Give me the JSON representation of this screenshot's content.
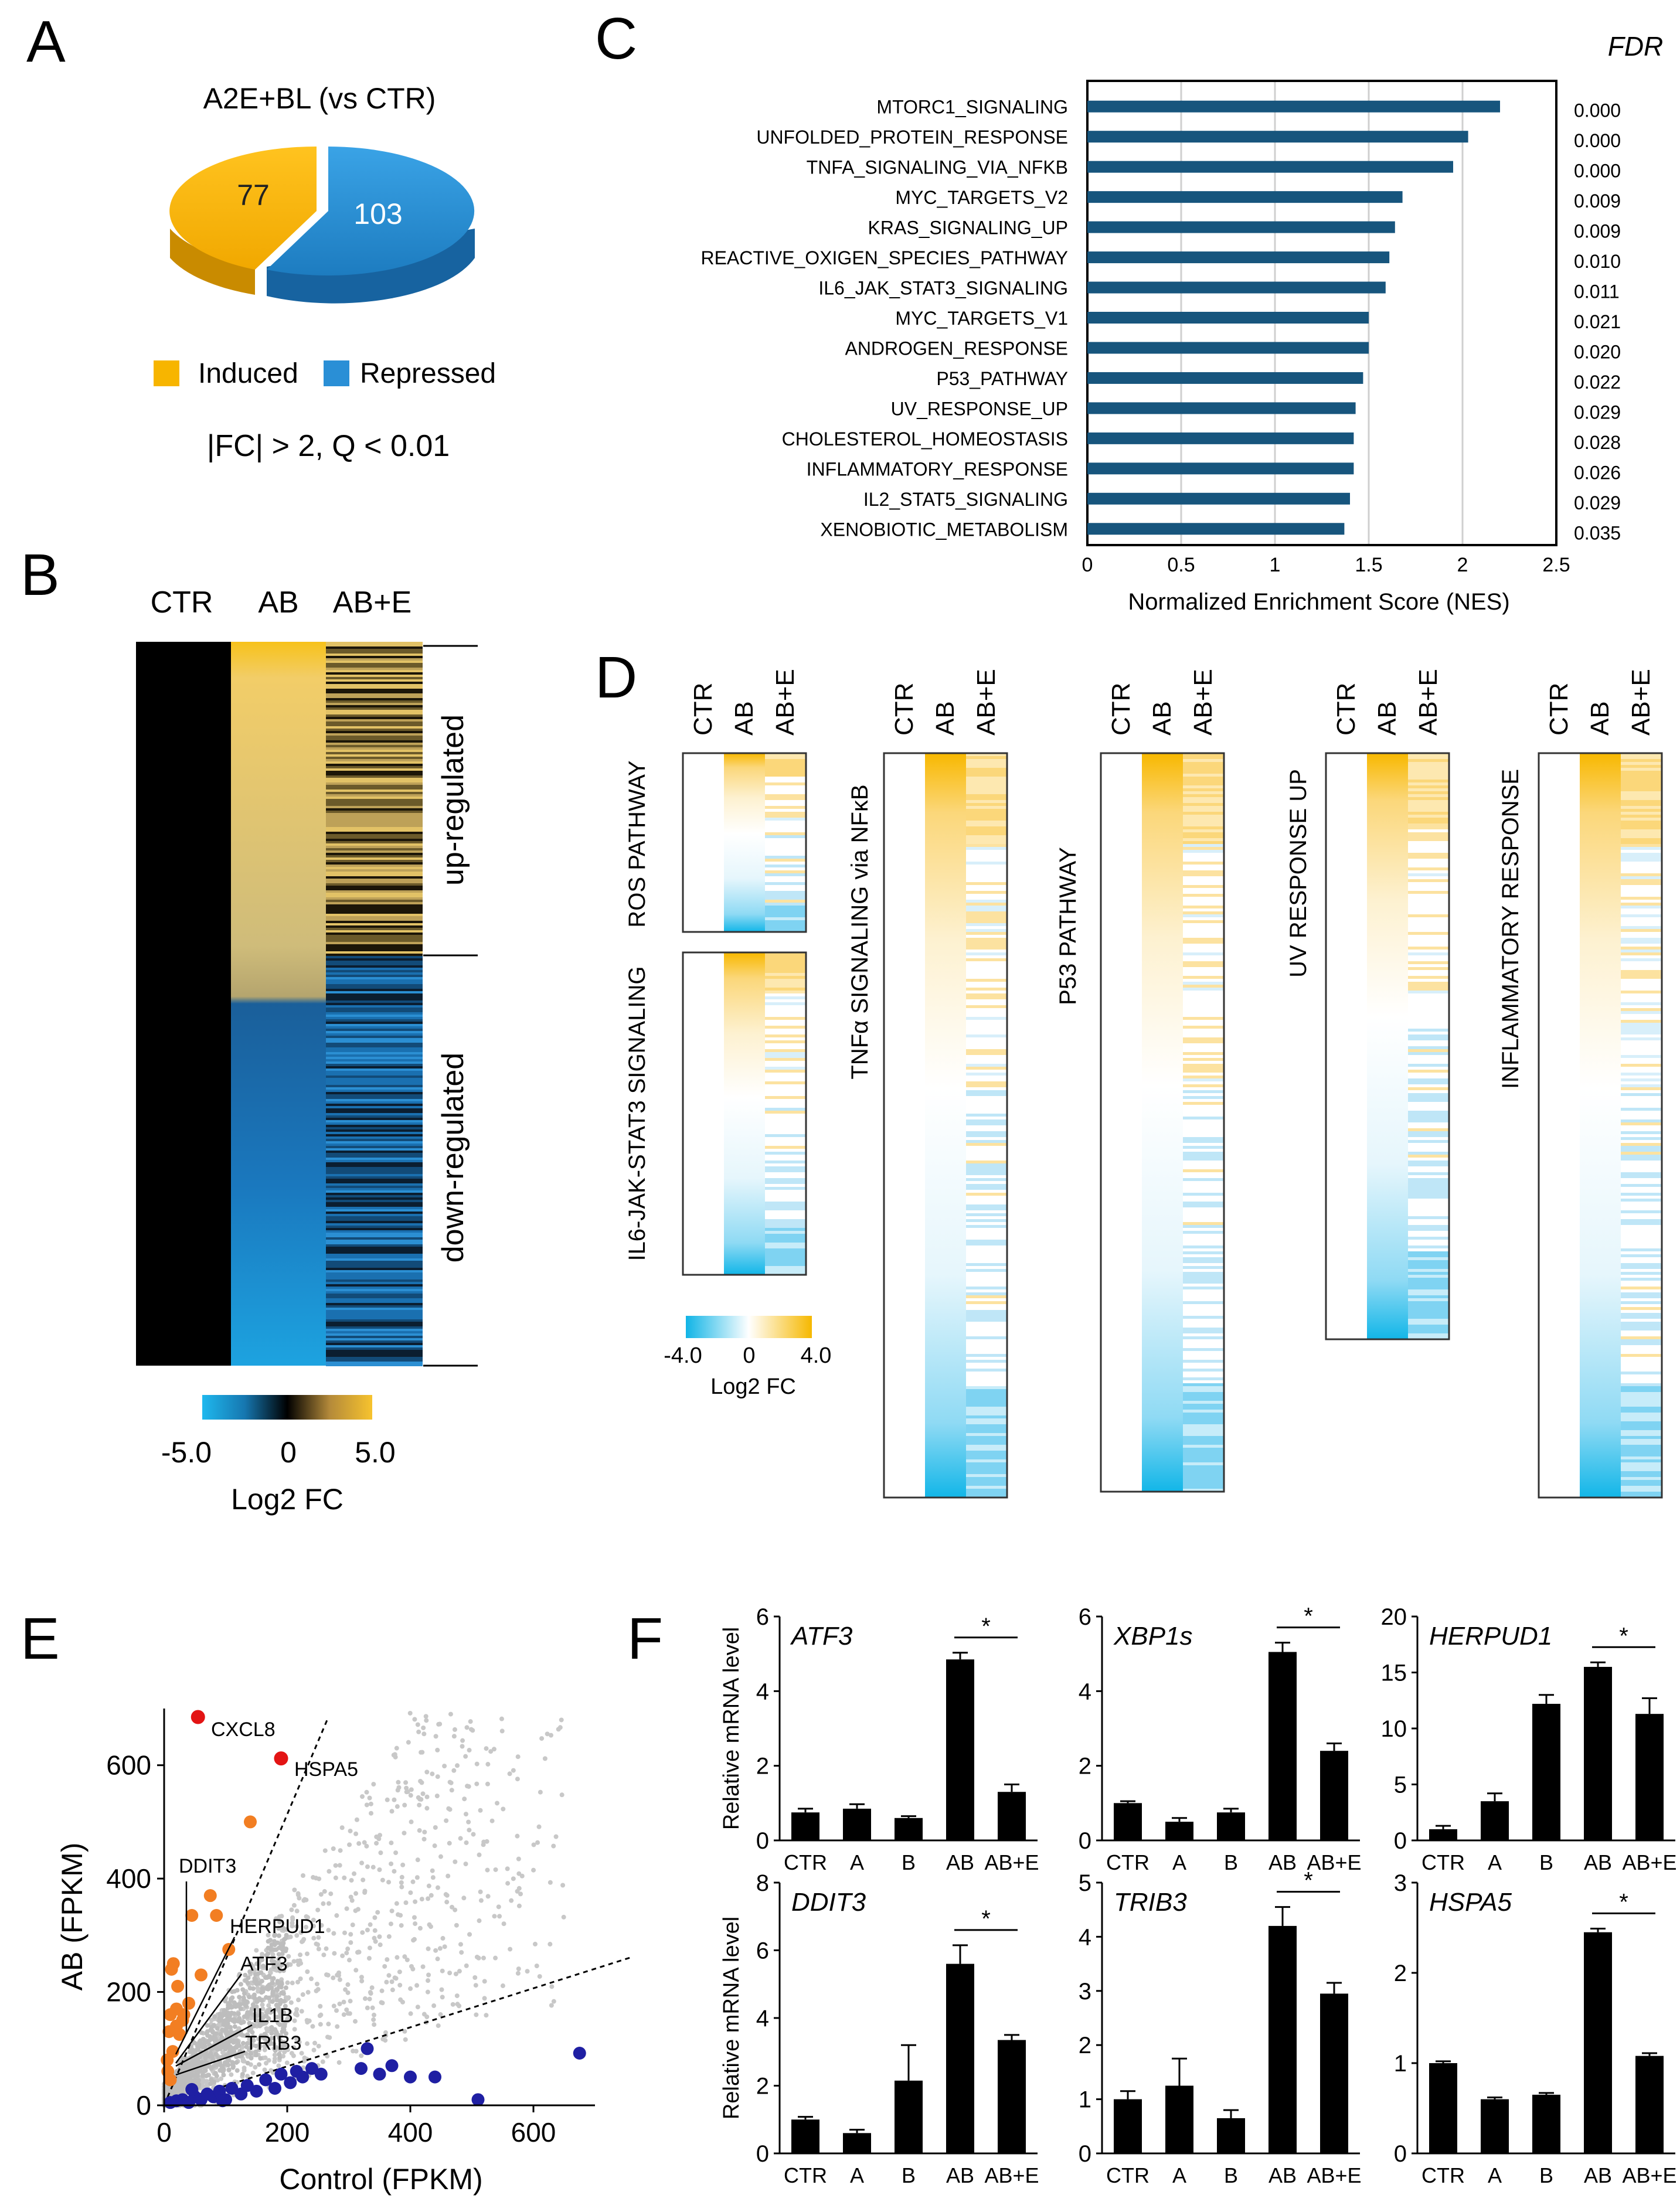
{
  "panels": {
    "a": "A",
    "b": "B",
    "c": "C",
    "d": "D",
    "e": "E",
    "f": "F"
  },
  "colors": {
    "yellow": "#F7B500",
    "blue": "#2A8FD6",
    "navy": "#17557D",
    "cyan": "#10B4E6",
    "orange": "#F27E22",
    "red": "#E31414",
    "darkblue": "#1F1FA3",
    "grey": "#c8c8c8"
  },
  "chart_data": [
    {
      "type": "pie",
      "title": "A2E+BL (vs CTR)",
      "labels": [
        "Induced",
        "Repressed"
      ],
      "values": [
        77,
        103
      ],
      "note": "|FC| > 2, Q < 0.01"
    },
    {
      "type": "heatmap",
      "columns": [
        "CTR",
        "AB",
        "AB+E"
      ],
      "row_groups": [
        "up-regulated",
        "down-regulated"
      ],
      "colorbar": {
        "min": "-5.0",
        "mid": "0",
        "max": "5.0",
        "label": "Log2 FC"
      }
    },
    {
      "type": "bar",
      "orientation": "horizontal",
      "categories": [
        "MTORC1_SIGNALING",
        "UNFOLDED_PROTEIN_RESPONSE",
        "TNFA_SIGNALING_VIA_NFKB",
        "MYC_TARGETS_V2",
        "KRAS_SIGNALING_UP",
        "REACTIVE_OXIGEN_SPECIES_PATHWAY",
        "IL6_JAK_STAT3_SIGNALING",
        "MYC_TARGETS_V1",
        "ANDROGEN_RESPONSE",
        "P53_PATHWAY",
        "UV_RESPONSE_UP",
        "CHOLESTEROL_HOMEOSTASIS",
        "INFLAMMATORY_RESPONSE",
        "IL2_STAT5_SIGNALING",
        "XENOBIOTIC_METABOLISM"
      ],
      "values": [
        2.2,
        2.03,
        1.95,
        1.68,
        1.64,
        1.61,
        1.59,
        1.5,
        1.5,
        1.47,
        1.43,
        1.42,
        1.42,
        1.4,
        1.37
      ],
      "fdr_label": "FDR",
      "fdr": [
        "0.000",
        "0.000",
        "0.000",
        "0.009",
        "0.009",
        "0.010",
        "0.011",
        "0.021",
        "0.020",
        "0.022",
        "0.029",
        "0.028",
        "0.026",
        "0.029",
        "0.035"
      ],
      "xlabel": "Normalized Enrichment Score (NES)",
      "xticks": [
        "0",
        "0.5",
        "1",
        "1.5",
        "2",
        "2.5"
      ],
      "xlim": [
        0,
        2.5
      ]
    },
    {
      "type": "heatmap",
      "columns": [
        "CTR",
        "AB",
        "AB+E"
      ],
      "pathways": [
        "ROS  PATHWAY",
        "IL6-JAK-STAT3  SIGNALING",
        "TNFα  SIGNALING via NFκB",
        "P53  PATHWAY",
        "UV  RESPONSE  UP",
        "INFLAMMATORY  RESPONSE"
      ],
      "colorbar": {
        "min": "-4.0",
        "mid": "0",
        "max": "4.0",
        "label": "Log2 FC"
      }
    },
    {
      "type": "scatter",
      "xlabel": "Control (FPKM)",
      "ylabel": "AB (FPKM)",
      "xticks": [
        "0",
        "200",
        "400",
        "600"
      ],
      "yticks": [
        "0",
        "200",
        "400",
        "600"
      ],
      "xlim": [
        0,
        700
      ],
      "ylim": [
        0,
        700
      ],
      "labeled_points": [
        {
          "label": "CXCL8",
          "x": 55,
          "y": 685
        },
        {
          "label": "HSPA5",
          "x": 190,
          "y": 612
        },
        {
          "label": "DDIT3",
          "x": 30,
          "y": 175
        },
        {
          "label": "HERPUD1",
          "x": 80,
          "y": 335
        },
        {
          "label": "ATF3",
          "x": 60,
          "y": 255
        },
        {
          "label": "IL1B",
          "x": 20,
          "y": 120
        },
        {
          "label": "TRIB3",
          "x": 25,
          "y": 90
        }
      ],
      "orange_points": [
        [
          5,
          80
        ],
        [
          8,
          130
        ],
        [
          10,
          160
        ],
        [
          12,
          240
        ],
        [
          15,
          250
        ],
        [
          20,
          140
        ],
        [
          20,
          170
        ],
        [
          22,
          210
        ],
        [
          25,
          125
        ],
        [
          30,
          150
        ],
        [
          32,
          160
        ],
        [
          40,
          180
        ],
        [
          45,
          335
        ],
        [
          60,
          230
        ],
        [
          75,
          370
        ],
        [
          85,
          335
        ],
        [
          105,
          275
        ],
        [
          140,
          500
        ],
        [
          6,
          60
        ],
        [
          10,
          45
        ],
        [
          14,
          95
        ]
      ],
      "blue_points": [
        [
          10,
          5
        ],
        [
          20,
          8
        ],
        [
          30,
          10
        ],
        [
          40,
          5
        ],
        [
          50,
          15
        ],
        [
          60,
          10
        ],
        [
          70,
          20
        ],
        [
          80,
          15
        ],
        [
          90,
          25
        ],
        [
          100,
          10
        ],
        [
          110,
          30
        ],
        [
          125,
          20
        ],
        [
          135,
          35
        ],
        [
          150,
          25
        ],
        [
          165,
          45
        ],
        [
          180,
          30
        ],
        [
          190,
          55
        ],
        [
          205,
          40
        ],
        [
          215,
          60
        ],
        [
          225,
          50
        ],
        [
          240,
          65
        ],
        [
          255,
          55
        ],
        [
          320,
          65
        ],
        [
          330,
          100
        ],
        [
          350,
          55
        ],
        [
          370,
          70
        ],
        [
          400,
          50
        ],
        [
          440,
          50
        ],
        [
          510,
          10
        ],
        [
          675,
          92
        ],
        [
          45,
          28
        ],
        [
          95,
          8
        ]
      ]
    },
    [
      {
        "type": "bar",
        "gene": "ATF3",
        "ylabel": "Relative mRNA level",
        "categories": [
          "CTR",
          "A",
          "B",
          "AB",
          "AB+E"
        ],
        "values": [
          0.75,
          0.85,
          0.6,
          4.85,
          1.3
        ],
        "errors": [
          0.1,
          0.12,
          0.05,
          0.18,
          0.2
        ],
        "ylim": [
          0,
          6
        ],
        "yticks": [
          "0",
          "2",
          "4",
          "6"
        ],
        "sig": "*"
      },
      {
        "type": "bar",
        "gene": "XBP1s",
        "categories": [
          "CTR",
          "A",
          "B",
          "AB",
          "AB+E"
        ],
        "values": [
          1.0,
          0.5,
          0.75,
          5.05,
          2.4
        ],
        "errors": [
          0.05,
          0.1,
          0.1,
          0.25,
          0.2
        ],
        "ylim": [
          0,
          6
        ],
        "yticks": [
          "0",
          "2",
          "4",
          "6"
        ],
        "sig": "*"
      },
      {
        "type": "bar",
        "gene": "HERPUD1",
        "categories": [
          "CTR",
          "A",
          "B",
          "AB",
          "AB+E"
        ],
        "values": [
          1.0,
          3.5,
          12.2,
          15.5,
          11.3
        ],
        "errors": [
          0.3,
          0.7,
          0.8,
          0.4,
          1.4
        ],
        "ylim": [
          0,
          20
        ],
        "yticks": [
          "0",
          "5",
          "10",
          "15",
          "20"
        ],
        "sig": "*"
      },
      {
        "type": "bar",
        "gene": "DDIT3",
        "ylabel": "Relative mRNA level",
        "categories": [
          "CTR",
          "A",
          "B",
          "AB",
          "AB+E"
        ],
        "values": [
          1.0,
          0.6,
          2.15,
          5.6,
          3.35
        ],
        "errors": [
          0.08,
          0.1,
          1.05,
          0.55,
          0.15
        ],
        "ylim": [
          0,
          8
        ],
        "yticks": [
          "0",
          "2",
          "4",
          "6",
          "8"
        ],
        "sig": "*"
      },
      {
        "type": "bar",
        "gene": "TRIB3",
        "categories": [
          "CTR",
          "A",
          "B",
          "AB",
          "AB+E"
        ],
        "values": [
          1.0,
          1.25,
          0.65,
          4.2,
          2.95
        ],
        "errors": [
          0.15,
          0.5,
          0.15,
          0.35,
          0.2
        ],
        "ylim": [
          0,
          5
        ],
        "yticks": [
          "0",
          "1",
          "2",
          "3",
          "4",
          "5"
        ],
        "sig": "*"
      },
      {
        "type": "bar",
        "gene": "HSPA5",
        "categories": [
          "CTR",
          "A",
          "B",
          "AB",
          "AB+E"
        ],
        "values": [
          1.0,
          0.6,
          0.65,
          2.45,
          1.08
        ],
        "errors": [
          0.02,
          0.02,
          0.02,
          0.04,
          0.03
        ],
        "ylim": [
          0,
          3
        ],
        "yticks": [
          "0",
          "1",
          "2",
          "3"
        ],
        "sig": "*"
      }
    ]
  ]
}
